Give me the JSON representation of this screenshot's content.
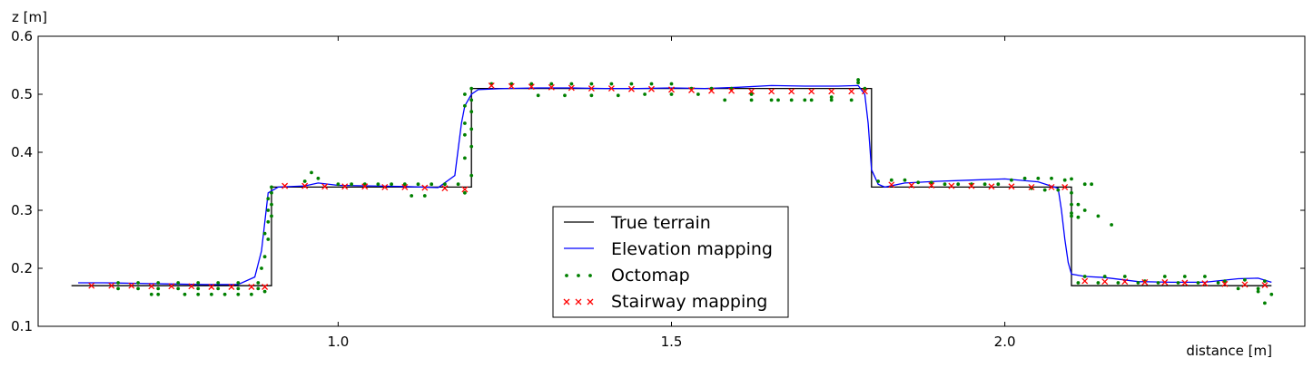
{
  "chart_data": {
    "type": "line",
    "title": "",
    "xlabel": "distance [m]",
    "ylabel": "z [m]",
    "xlim": [
      0.55,
      2.45
    ],
    "ylim": [
      0.1,
      0.6
    ],
    "xticks": [
      "1.0",
      "1.5",
      "2.0"
    ],
    "xtick_values": [
      1.0,
      1.5,
      2.0
    ],
    "yticks": [
      "0.1",
      "0.2",
      "0.3",
      "0.4",
      "0.5",
      "0.6"
    ],
    "ytick_values": [
      0.1,
      0.2,
      0.3,
      0.4,
      0.5,
      0.6
    ],
    "grid": false,
    "legend_placement": "lower-center",
    "series": [
      {
        "name": "True terrain",
        "style": "line",
        "color": "#000000",
        "x": [
          0.6,
          0.9,
          0.9,
          1.2,
          1.2,
          1.8,
          1.8,
          2.1,
          2.1,
          2.4
        ],
        "y": [
          0.17,
          0.17,
          0.34,
          0.34,
          0.51,
          0.51,
          0.34,
          0.34,
          0.17,
          0.17
        ]
      },
      {
        "name": "Elevation mapping",
        "style": "line",
        "color": "#0000ff",
        "x": [
          0.61,
          0.65,
          0.7,
          0.75,
          0.8,
          0.85,
          0.875,
          0.885,
          0.895,
          0.91,
          0.95,
          0.97,
          1.0,
          1.05,
          1.1,
          1.15,
          1.175,
          1.185,
          1.19,
          1.2,
          1.21,
          1.25,
          1.3,
          1.35,
          1.4,
          1.45,
          1.5,
          1.55,
          1.6,
          1.65,
          1.7,
          1.75,
          1.78,
          1.79,
          1.795,
          1.8,
          1.81,
          1.82,
          1.85,
          1.9,
          1.95,
          2.0,
          2.05,
          2.08,
          2.085,
          2.09,
          2.095,
          2.1,
          2.12,
          2.15,
          2.2,
          2.25,
          2.3,
          2.35,
          2.38,
          2.4
        ],
        "y": [
          0.175,
          0.175,
          0.174,
          0.173,
          0.172,
          0.172,
          0.185,
          0.23,
          0.33,
          0.34,
          0.342,
          0.347,
          0.343,
          0.342,
          0.341,
          0.339,
          0.36,
          0.45,
          0.48,
          0.5,
          0.508,
          0.51,
          0.511,
          0.511,
          0.51,
          0.51,
          0.511,
          0.51,
          0.512,
          0.515,
          0.514,
          0.514,
          0.515,
          0.5,
          0.45,
          0.37,
          0.345,
          0.34,
          0.347,
          0.35,
          0.352,
          0.354,
          0.349,
          0.338,
          0.3,
          0.25,
          0.21,
          0.19,
          0.186,
          0.184,
          0.177,
          0.176,
          0.176,
          0.182,
          0.183,
          0.176
        ]
      },
      {
        "name": "Octomap",
        "style": "dots",
        "color": "#008000",
        "x": [
          0.67,
          0.7,
          0.73,
          0.76,
          0.79,
          0.82,
          0.85,
          0.88,
          0.67,
          0.7,
          0.73,
          0.76,
          0.79,
          0.82,
          0.85,
          0.88,
          0.72,
          0.73,
          0.77,
          0.79,
          0.81,
          0.83,
          0.85,
          0.87,
          0.89,
          0.885,
          0.89,
          0.895,
          0.89,
          0.895,
          0.9,
          0.895,
          0.9,
          0.895,
          0.9,
          0.9,
          0.96,
          0.97,
          0.95,
          1.0,
          1.02,
          1.04,
          1.06,
          1.08,
          1.1,
          1.12,
          1.14,
          1.16,
          1.18,
          1.13,
          1.11,
          1.19,
          1.2,
          1.19,
          1.2,
          1.19,
          1.2,
          1.19,
          1.2,
          1.19,
          1.2,
          1.19,
          1.2,
          1.23,
          1.26,
          1.29,
          1.32,
          1.35,
          1.38,
          1.41,
          1.44,
          1.47,
          1.5,
          1.53,
          1.56,
          1.59,
          1.62,
          1.65,
          1.68,
          1.71,
          1.74,
          1.77,
          1.3,
          1.34,
          1.38,
          1.42,
          1.46,
          1.5,
          1.54,
          1.58,
          1.62,
          1.66,
          1.7,
          1.74,
          1.78,
          1.78,
          1.79,
          1.81,
          1.83,
          1.85,
          1.87,
          1.89,
          1.91,
          1.93,
          1.95,
          1.97,
          1.99,
          2.01,
          2.03,
          2.05,
          2.07,
          2.09,
          2.04,
          2.06,
          2.08,
          2.1,
          2.1,
          2.1,
          2.1,
          2.11,
          2.12,
          2.13,
          2.1,
          2.11,
          2.12,
          2.14,
          2.16,
          2.12,
          2.15,
          2.18,
          2.21,
          2.24,
          2.27,
          2.3,
          2.33,
          2.36,
          2.39,
          2.11,
          2.14,
          2.17,
          2.2,
          2.23,
          2.26,
          2.29,
          2.32,
          2.35,
          2.38,
          2.4,
          2.39,
          2.38
        ],
        "y": [
          0.175,
          0.175,
          0.175,
          0.175,
          0.175,
          0.175,
          0.175,
          0.175,
          0.165,
          0.165,
          0.165,
          0.165,
          0.165,
          0.165,
          0.165,
          0.165,
          0.155,
          0.155,
          0.155,
          0.155,
          0.155,
          0.155,
          0.155,
          0.155,
          0.16,
          0.2,
          0.22,
          0.25,
          0.26,
          0.28,
          0.29,
          0.3,
          0.31,
          0.32,
          0.33,
          0.34,
          0.365,
          0.355,
          0.35,
          0.345,
          0.345,
          0.345,
          0.345,
          0.345,
          0.345,
          0.345,
          0.345,
          0.345,
          0.345,
          0.325,
          0.325,
          0.33,
          0.36,
          0.39,
          0.41,
          0.43,
          0.44,
          0.45,
          0.47,
          0.48,
          0.49,
          0.5,
          0.51,
          0.518,
          0.518,
          0.518,
          0.518,
          0.518,
          0.518,
          0.518,
          0.518,
          0.518,
          0.518,
          0.51,
          0.51,
          0.51,
          0.5,
          0.49,
          0.49,
          0.49,
          0.49,
          0.49,
          0.498,
          0.498,
          0.498,
          0.498,
          0.5,
          0.5,
          0.5,
          0.49,
          0.49,
          0.49,
          0.49,
          0.495,
          0.525,
          0.52,
          0.51,
          0.35,
          0.352,
          0.352,
          0.348,
          0.348,
          0.345,
          0.345,
          0.345,
          0.345,
          0.345,
          0.352,
          0.355,
          0.355,
          0.355,
          0.352,
          0.338,
          0.335,
          0.335,
          0.354,
          0.33,
          0.31,
          0.29,
          0.31,
          0.345,
          0.345,
          0.295,
          0.288,
          0.3,
          0.29,
          0.275,
          0.186,
          0.186,
          0.186,
          0.178,
          0.186,
          0.186,
          0.186,
          0.178,
          0.18,
          0.178,
          0.175,
          0.175,
          0.175,
          0.175,
          0.175,
          0.175,
          0.175,
          0.175,
          0.165,
          0.165,
          0.155,
          0.14,
          0.16
        ]
      },
      {
        "name": "Stairway mapping",
        "style": "markers-x",
        "color": "#ff0000",
        "x": [
          0.63,
          0.66,
          0.69,
          0.72,
          0.75,
          0.78,
          0.81,
          0.84,
          0.87,
          0.89,
          0.92,
          0.95,
          0.98,
          1.01,
          1.04,
          1.07,
          1.1,
          1.13,
          1.16,
          1.19,
          1.23,
          1.26,
          1.29,
          1.32,
          1.35,
          1.38,
          1.41,
          1.44,
          1.47,
          1.5,
          1.53,
          1.56,
          1.59,
          1.62,
          1.65,
          1.68,
          1.71,
          1.74,
          1.77,
          1.79,
          1.83,
          1.86,
          1.89,
          1.92,
          1.95,
          1.98,
          2.01,
          2.04,
          2.07,
          2.09,
          2.12,
          2.15,
          2.18,
          2.21,
          2.24,
          2.27,
          2.3,
          2.33,
          2.36,
          2.39
        ],
        "y": [
          0.17,
          0.17,
          0.17,
          0.169,
          0.169,
          0.169,
          0.168,
          0.168,
          0.168,
          0.168,
          0.342,
          0.342,
          0.341,
          0.341,
          0.341,
          0.34,
          0.34,
          0.339,
          0.338,
          0.336,
          0.515,
          0.514,
          0.513,
          0.512,
          0.511,
          0.51,
          0.51,
          0.509,
          0.509,
          0.508,
          0.507,
          0.506,
          0.506,
          0.505,
          0.505,
          0.505,
          0.505,
          0.505,
          0.505,
          0.505,
          0.344,
          0.343,
          0.343,
          0.342,
          0.342,
          0.341,
          0.341,
          0.34,
          0.34,
          0.34,
          0.178,
          0.177,
          0.177,
          0.176,
          0.176,
          0.175,
          0.174,
          0.173,
          0.172,
          0.171
        ]
      }
    ]
  }
}
